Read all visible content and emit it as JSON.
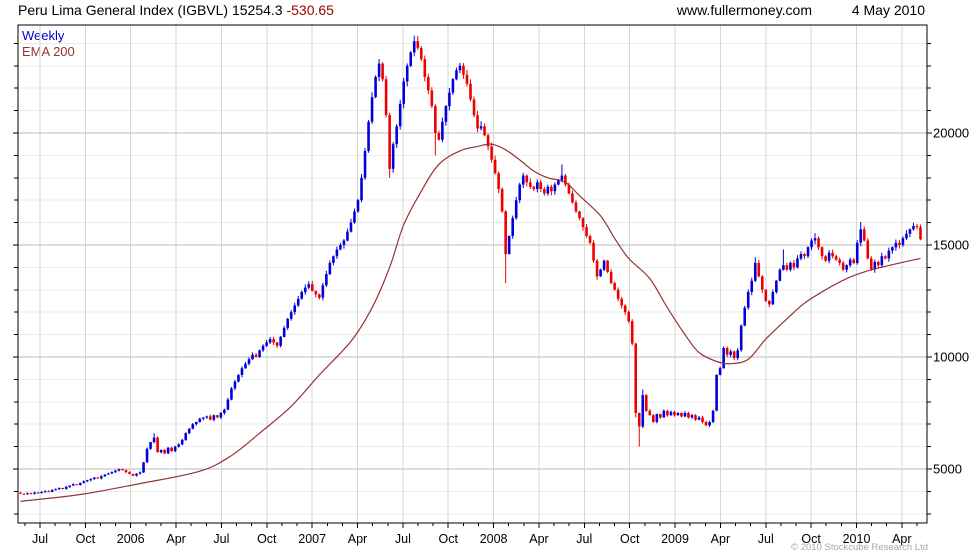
{
  "header": {
    "title_main": "Peru Lima General Index (IGBVL) 15254.3",
    "title_change": "-530.65",
    "website": "www.fullermoney.com",
    "date": "4 May 2010"
  },
  "legend": {
    "weekly": "Weekly",
    "ema": "EMA 200"
  },
  "footer": {
    "copyright": "© 2010 Stockcube Research Ltd"
  },
  "chart_data": {
    "type": "candlestick",
    "title": "Peru Lima General Index (IGBVL)",
    "frequency": "weekly",
    "last_price": 15254.3,
    "change": -530.65,
    "legend_position": "top-left",
    "grid": true,
    "x_axis": {
      "labels": [
        "Jul",
        "Oct",
        "2006",
        "Apr",
        "Jul",
        "Oct",
        "2007",
        "Apr",
        "Jul",
        "Oct",
        "2008",
        "Apr",
        "Jul",
        "Oct",
        "2009",
        "Apr",
        "Jul",
        "Oct",
        "2010",
        "Apr"
      ],
      "span": "May 2005 - May 2010"
    },
    "y_axis": {
      "ticks": [
        5000,
        10000,
        15000,
        20000
      ],
      "minor_step": 1000,
      "price_range_visible": [
        2590,
        24820
      ],
      "side": "right"
    },
    "colors": {
      "up": "#0000dd",
      "down": "#ee0000",
      "ema": "#943434"
    },
    "series": [
      {
        "name": "Weekly",
        "type": "candlestick",
        "weekly_closes": [
          3900,
          3870,
          3920,
          3890,
          3950,
          3920,
          3970,
          4010,
          3980,
          4060,
          4100,
          4150,
          4110,
          4200,
          4260,
          4320,
          4290,
          4380,
          4450,
          4500,
          4550,
          4620,
          4580,
          4680,
          4750,
          4800,
          4860,
          4930,
          5000,
          4950,
          4860,
          4780,
          4700,
          4790,
          4850,
          5300,
          5900,
          6200,
          6400,
          5750,
          5850,
          5700,
          5950,
          5800,
          6000,
          6100,
          6300,
          6600,
          6800,
          7000,
          7100,
          7250,
          7300,
          7350,
          7200,
          7400,
          7300,
          7500,
          7650,
          8100,
          8600,
          8900,
          9200,
          9500,
          9700,
          9900,
          10100,
          10000,
          10300,
          10500,
          10650,
          10800,
          10650,
          10500,
          10900,
          11300,
          11700,
          12000,
          12300,
          12600,
          12900,
          13100,
          13250,
          12950,
          12800,
          12650,
          13200,
          13700,
          14200,
          14500,
          14800,
          15000,
          15200,
          15600,
          16000,
          16500,
          17000,
          18000,
          19200,
          20500,
          21600,
          22500,
          23100,
          22400,
          20800,
          18400,
          19500,
          20300,
          21300,
          22300,
          23000,
          23600,
          24100,
          23800,
          23300,
          22500,
          21900,
          21200,
          20000,
          19700,
          20500,
          21200,
          21800,
          22400,
          22800,
          23000,
          22600,
          22200,
          21500,
          20800,
          20200,
          20300,
          19900,
          19400,
          18800,
          18200,
          17500,
          16500,
          14600,
          15400,
          16200,
          17000,
          17700,
          18100,
          17800,
          17600,
          17500,
          17800,
          17500,
          17300,
          17600,
          17400,
          17700,
          17900,
          18100,
          17700,
          17300,
          16900,
          16500,
          16200,
          15800,
          15400,
          15100,
          14300,
          13600,
          13900,
          14300,
          13800,
          13300,
          13000,
          12600,
          12300,
          12000,
          11600,
          10600,
          7500,
          6900,
          8300,
          7600,
          7400,
          7100,
          7450,
          7300,
          7600,
          7400,
          7550,
          7400,
          7500,
          7350,
          7500,
          7300,
          7400,
          7200,
          7300,
          7100,
          6950,
          7100,
          7600,
          9200,
          9500,
          10400,
          10100,
          10250,
          9950,
          10300,
          11400,
          12200,
          12900,
          13400,
          14200,
          13600,
          13000,
          12500,
          12350,
          12900,
          13400,
          13900,
          14100,
          13900,
          14200,
          14000,
          14400,
          14600,
          14500,
          14900,
          15200,
          15300,
          14900,
          14500,
          14300,
          14650,
          14500,
          14350,
          14200,
          13900,
          14100,
          14350,
          14200,
          15100,
          15700,
          15200,
          14400,
          13900,
          14250,
          14100,
          14500,
          14400,
          14750,
          14900,
          15100,
          15000,
          15300,
          15500,
          15700,
          15850,
          15800,
          15254
        ],
        "extreme_highs": {
          "38": 6600,
          "112": 24350,
          "154": 18600,
          "177": 8550,
          "209": 14450,
          "217": 14800,
          "226": 15530,
          "239": 16030,
          "254": 16000
        },
        "extreme_lows": {
          "105": 18000,
          "118": 19000,
          "138": 13300,
          "175": 7300,
          "176": 6000,
          "213": 12230
        }
      },
      {
        "name": "EMA 200",
        "type": "line",
        "points": [
          [
            0,
            3560
          ],
          [
            17,
            3860
          ],
          [
            34,
            4350
          ],
          [
            51,
            4900
          ],
          [
            60,
            5600
          ],
          [
            68,
            6600
          ],
          [
            77,
            7800
          ],
          [
            85,
            9200
          ],
          [
            94,
            10700
          ],
          [
            100,
            12200
          ],
          [
            105,
            14000
          ],
          [
            109,
            15900
          ],
          [
            114,
            17400
          ],
          [
            119,
            18600
          ],
          [
            125,
            19200
          ],
          [
            130,
            19400
          ],
          [
            134,
            19500
          ],
          [
            138,
            19250
          ],
          [
            142,
            18800
          ],
          [
            146,
            18300
          ],
          [
            150,
            18000
          ],
          [
            155,
            17800
          ],
          [
            159,
            17200
          ],
          [
            165,
            16300
          ],
          [
            169,
            15300
          ],
          [
            173,
            14400
          ],
          [
            179,
            13500
          ],
          [
            184,
            12200
          ],
          [
            189,
            11000
          ],
          [
            193,
            10200
          ],
          [
            198,
            9800
          ],
          [
            202,
            9700
          ],
          [
            207,
            9900
          ],
          [
            212,
            10800
          ],
          [
            218,
            11700
          ],
          [
            223,
            12400
          ],
          [
            229,
            13000
          ],
          [
            235,
            13500
          ],
          [
            240,
            13800
          ],
          [
            246,
            14050
          ],
          [
            256,
            14400
          ]
        ]
      }
    ]
  }
}
